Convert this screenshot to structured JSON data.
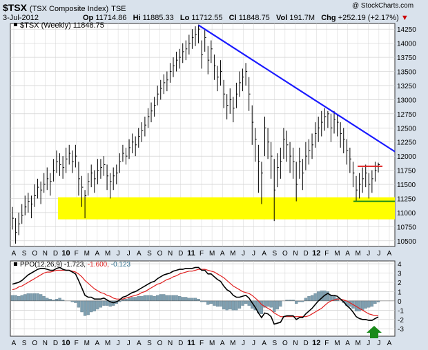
{
  "header": {
    "symbol": "$TSX",
    "name": "(TSX Composite Index)",
    "exchange": "TSE",
    "date": "3-Jul-2012",
    "open_label": "Op",
    "open": "11714.86",
    "high_label": "Hi",
    "high": "11885.33",
    "low_label": "Lo",
    "low": "11712.55",
    "close_label": "Cl",
    "close": "11848.75",
    "vol_label": "Vol",
    "volume": "191.7M",
    "chg_label": "Chg",
    "change": "+252.19 (+2.17%)",
    "watermark": "@ StockCharts.com"
  },
  "colors": {
    "background": "#d9e2ec",
    "price_bars": "#000000",
    "trendline": "#1a1aff",
    "support_zone": "#ffff00",
    "resistance_line": "#e02020",
    "support_line": "#1a8a1a",
    "ppo_line": "#000000",
    "signal_line": "#e02020",
    "histogram": "#7f9fb0",
    "arrow": "#1a8a1a"
  },
  "chart_data": [
    {
      "type": "bar",
      "legend": "$TSX (Weekly) 11848.75",
      "y_ticks": [
        10500,
        10750,
        11000,
        11250,
        11500,
        11750,
        12000,
        12250,
        12500,
        12750,
        13000,
        13250,
        13500,
        13750,
        14000,
        14250
      ],
      "ylim": [
        10400,
        14350
      ],
      "x_months": [
        "A",
        "S",
        "O",
        "N",
        "D",
        "10",
        "F",
        "M",
        "A",
        "M",
        "J",
        "J",
        "A",
        "S",
        "O",
        "N",
        "D",
        "11",
        "F",
        "M",
        "A",
        "M",
        "J",
        "J",
        "A",
        "S",
        "O",
        "N",
        "D",
        "12",
        "F",
        "M",
        "A",
        "M",
        "J",
        "J",
        "A"
      ],
      "weekly_close": [
        10900,
        10650,
        10800,
        10950,
        11100,
        11200,
        11150,
        11300,
        11450,
        11400,
        11500,
        11600,
        11550,
        11750,
        11900,
        11850,
        11800,
        11950,
        12050,
        11900,
        12000,
        11600,
        11450,
        11300,
        11550,
        11700,
        11600,
        11750,
        11800,
        11850,
        11650,
        11550,
        11650,
        11700,
        11900,
        12050,
        12000,
        12150,
        12250,
        12200,
        12350,
        12450,
        12550,
        12700,
        12800,
        12900,
        13100,
        13200,
        13300,
        13350,
        13500,
        13600,
        13700,
        13750,
        13850,
        13900,
        14000,
        14100,
        14150,
        14250,
        13800,
        14100,
        13700,
        13900,
        13600,
        13400,
        13500,
        13100,
        12900,
        13000,
        12850,
        13100,
        13300,
        13400,
        13500,
        13100,
        12600,
        12300,
        11900,
        11700,
        12500,
        12250,
        12000,
        11400,
        11800,
        11900,
        12300,
        12200,
        12000,
        11900,
        11500,
        11900,
        11700,
        12000,
        12100,
        12200,
        12400,
        12500,
        12600,
        12700,
        12750,
        12500,
        12650,
        12600,
        12400,
        12300,
        12100,
        11950,
        11700,
        11400,
        11500,
        11600,
        11700,
        11500,
        11600,
        11750,
        11849
      ],
      "weekly_range": [
        [
          10700,
          11100
        ],
        [
          10450,
          10900
        ],
        [
          10600,
          11000
        ],
        [
          10800,
          11150
        ],
        [
          10950,
          11300
        ],
        [
          11000,
          11350
        ],
        [
          10900,
          11300
        ],
        [
          11100,
          11500
        ],
        [
          11250,
          11600
        ],
        [
          11150,
          11550
        ],
        [
          11350,
          11700
        ],
        [
          11400,
          11800
        ],
        [
          11300,
          11700
        ],
        [
          11550,
          11950
        ],
        [
          11700,
          12100
        ],
        [
          11650,
          12050
        ],
        [
          11600,
          12000
        ],
        [
          11700,
          12150
        ],
        [
          11850,
          12200
        ],
        [
          11700,
          12100
        ],
        [
          11800,
          12200
        ],
        [
          11300,
          11900
        ],
        [
          11100,
          11650
        ],
        [
          10900,
          11400
        ],
        [
          11300,
          11700
        ],
        [
          11450,
          11850
        ],
        [
          11350,
          11750
        ],
        [
          11500,
          11950
        ],
        [
          11600,
          11950
        ],
        [
          11650,
          12000
        ],
        [
          11400,
          11850
        ],
        [
          11250,
          11700
        ],
        [
          11400,
          11800
        ],
        [
          11500,
          11850
        ],
        [
          11700,
          12050
        ],
        [
          11900,
          12200
        ],
        [
          11850,
          12150
        ],
        [
          11950,
          12300
        ],
        [
          12050,
          12400
        ],
        [
          12000,
          12350
        ],
        [
          12150,
          12500
        ],
        [
          12250,
          12600
        ],
        [
          12350,
          12700
        ],
        [
          12500,
          12850
        ],
        [
          12600,
          12950
        ],
        [
          12700,
          13050
        ],
        [
          12900,
          13250
        ],
        [
          13000,
          13350
        ],
        [
          13100,
          13450
        ],
        [
          13150,
          13500
        ],
        [
          13300,
          13650
        ],
        [
          13400,
          13750
        ],
        [
          13500,
          13850
        ],
        [
          13550,
          13900
        ],
        [
          13650,
          14000
        ],
        [
          13700,
          14050
        ],
        [
          13800,
          14150
        ],
        [
          13900,
          14250
        ],
        [
          13950,
          14300
        ],
        [
          14000,
          14330
        ],
        [
          13550,
          14050
        ],
        [
          13850,
          14250
        ],
        [
          13450,
          13950
        ],
        [
          13650,
          14050
        ],
        [
          13350,
          13800
        ],
        [
          13150,
          13600
        ],
        [
          13250,
          13700
        ],
        [
          12850,
          13350
        ],
        [
          12650,
          13100
        ],
        [
          12750,
          13200
        ],
        [
          12600,
          13050
        ],
        [
          12850,
          13300
        ],
        [
          13050,
          13500
        ],
        [
          13150,
          13550
        ],
        [
          13250,
          13650
        ],
        [
          12800,
          13400
        ],
        [
          12200,
          12900
        ],
        [
          11900,
          12500
        ],
        [
          11350,
          12200
        ],
        [
          11150,
          11900
        ],
        [
          12000,
          12700
        ],
        [
          11950,
          12500
        ],
        [
          11600,
          12250
        ],
        [
          10850,
          11950
        ],
        [
          11450,
          12050
        ],
        [
          11600,
          12150
        ],
        [
          11950,
          12500
        ],
        [
          11900,
          12450
        ],
        [
          11700,
          12250
        ],
        [
          11600,
          12150
        ],
        [
          11200,
          11900
        ],
        [
          11600,
          12150
        ],
        [
          11400,
          11950
        ],
        [
          11750,
          12250
        ],
        [
          11850,
          12300
        ],
        [
          11950,
          12400
        ],
        [
          12150,
          12600
        ],
        [
          12250,
          12700
        ],
        [
          12350,
          12800
        ],
        [
          12450,
          12850
        ],
        [
          12500,
          12800
        ],
        [
          12250,
          12750
        ],
        [
          12400,
          12800
        ],
        [
          12350,
          12750
        ],
        [
          12150,
          12600
        ],
        [
          12050,
          12500
        ],
        [
          11850,
          12300
        ],
        [
          11700,
          12150
        ],
        [
          11450,
          11900
        ],
        [
          11200,
          11650
        ],
        [
          11250,
          11700
        ],
        [
          11350,
          11800
        ],
        [
          11450,
          11850
        ],
        [
          11250,
          11700
        ],
        [
          11350,
          11750
        ],
        [
          11550,
          11900
        ],
        [
          11712,
          11885
        ]
      ],
      "annotations": {
        "trendline": [
          [
            14320,
            59
          ],
          [
            12080,
            116
          ]
        ],
        "support_zone": [
          10880,
          11270
        ],
        "resistance_line": 11820,
        "support_line": 11200
      }
    },
    {
      "type": "line",
      "legend_prefix": "PPO(12,26,9)",
      "legend_ppo": "-1.723",
      "legend_signal": "-1.600",
      "legend_hist": "-0.123",
      "y_ticks": [
        -3,
        -2,
        -1,
        0,
        1,
        2,
        3,
        4
      ],
      "ylim": [
        -3.8,
        4.3
      ],
      "series": [
        {
          "name": "PPO(12,26,9)",
          "values": [
            1.8,
            1.9,
            2.0,
            2.2,
            2.5,
            2.8,
            3.0,
            3.2,
            3.4,
            3.5,
            3.5,
            3.4,
            3.3,
            3.3,
            3.5,
            3.6,
            3.4,
            3.3,
            3.3,
            3.1,
            2.9,
            2.2,
            1.4,
            0.6,
            0.4,
            0.4,
            0.2,
            0.2,
            0.2,
            0.3,
            0.1,
            -0.1,
            -0.2,
            -0.1,
            0.1,
            0.4,
            0.5,
            0.7,
            0.9,
            1.0,
            1.2,
            1.4,
            1.6,
            1.8,
            2.0,
            2.1,
            2.4,
            2.6,
            2.8,
            2.9,
            3.0,
            3.2,
            3.3,
            3.4,
            3.4,
            3.5,
            3.5,
            3.5,
            3.6,
            3.6,
            3.3,
            3.3,
            2.9,
            2.9,
            2.6,
            2.3,
            2.1,
            1.6,
            1.2,
            1.0,
            0.6,
            0.4,
            0.4,
            0.5,
            0.6,
            0.3,
            -0.2,
            -0.7,
            -1.3,
            -1.8,
            -1.3,
            -1.4,
            -1.7,
            -2.5,
            -2.4,
            -2.3,
            -1.7,
            -1.6,
            -1.6,
            -1.6,
            -2.0,
            -1.8,
            -1.8,
            -1.4,
            -1.1,
            -0.8,
            -0.4,
            0.0,
            0.3,
            0.6,
            0.8,
            0.6,
            0.6,
            0.5,
            0.2,
            -0.1,
            -0.5,
            -0.8,
            -1.2,
            -1.7,
            -1.9,
            -2.0,
            -2.0,
            -2.1,
            -2.1,
            -1.9,
            -1.723
          ]
        },
        {
          "name": "Signal",
          "values": [
            1.2,
            1.3,
            1.5,
            1.6,
            1.8,
            2.0,
            2.2,
            2.4,
            2.6,
            2.8,
            3.0,
            3.1,
            3.1,
            3.2,
            3.3,
            3.3,
            3.3,
            3.3,
            3.3,
            3.2,
            3.1,
            2.9,
            2.6,
            2.2,
            1.9,
            1.6,
            1.3,
            1.1,
            0.9,
            0.8,
            0.6,
            0.5,
            0.3,
            0.2,
            0.2,
            0.2,
            0.3,
            0.4,
            0.5,
            0.6,
            0.7,
            0.9,
            1.0,
            1.2,
            1.4,
            1.6,
            1.8,
            1.9,
            2.1,
            2.3,
            2.4,
            2.6,
            2.7,
            2.9,
            3.0,
            3.1,
            3.2,
            3.2,
            3.3,
            3.4,
            3.4,
            3.4,
            3.3,
            3.2,
            3.1,
            2.9,
            2.7,
            2.5,
            2.2,
            1.9,
            1.6,
            1.4,
            1.2,
            1.0,
            0.9,
            0.8,
            0.6,
            0.3,
            0.0,
            -0.4,
            -0.6,
            -0.8,
            -1.0,
            -1.3,
            -1.5,
            -1.7,
            -1.7,
            -1.7,
            -1.7,
            -1.7,
            -1.7,
            -1.7,
            -1.7,
            -1.7,
            -1.6,
            -1.4,
            -1.2,
            -1.0,
            -0.8,
            -0.5,
            -0.2,
            0.0,
            0.1,
            0.2,
            0.2,
            0.1,
            0.0,
            -0.2,
            -0.4,
            -0.6,
            -0.8,
            -1.0,
            -1.2,
            -1.4,
            -1.5,
            -1.6,
            -1.6
          ]
        }
      ],
      "histogram": "ppo_minus_signal"
    }
  ]
}
